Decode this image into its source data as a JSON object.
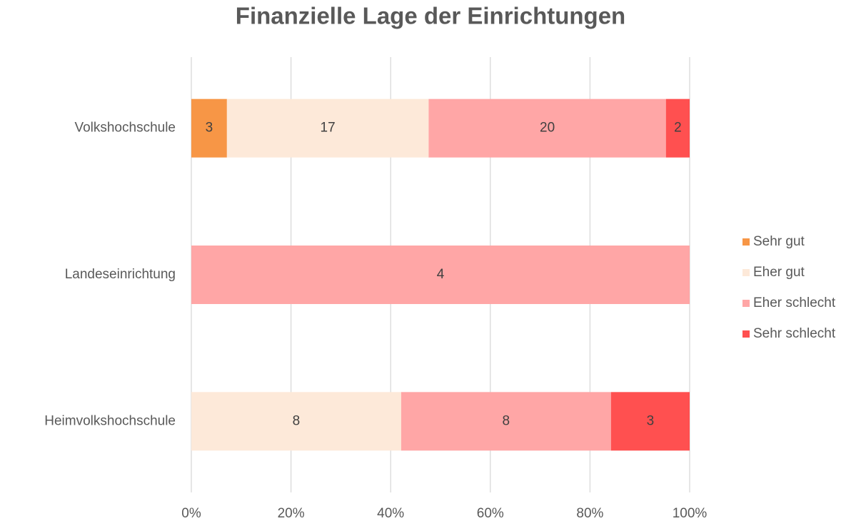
{
  "chart_data": {
    "type": "bar",
    "orientation": "horizontal",
    "stacking": "percent",
    "title": "Finanzielle Lage der Einrichtungen",
    "categories": [
      "Volkshochschule",
      "Landeseinrichtung",
      "Heimvolkshochschule"
    ],
    "series": [
      {
        "name": "Sehr gut",
        "color": "#f79646",
        "values": [
          3,
          0,
          0
        ]
      },
      {
        "name": "Eher gut",
        "color": "#fde9d9",
        "values": [
          17,
          0,
          8
        ]
      },
      {
        "name": "Eher schlecht",
        "color": "#ffa6a6",
        "values": [
          20,
          4,
          8
        ]
      },
      {
        "name": "Sehr schlecht",
        "color": "#ff5050",
        "values": [
          2,
          0,
          3
        ]
      }
    ],
    "xlim": [
      0,
      100
    ],
    "xticks": [
      {
        "value": 0,
        "label": "0%"
      },
      {
        "value": 20,
        "label": "20%"
      },
      {
        "value": 40,
        "label": "40%"
      },
      {
        "value": 60,
        "label": "60%"
      },
      {
        "value": 80,
        "label": "80%"
      },
      {
        "value": 100,
        "label": "100%"
      }
    ],
    "grid": true,
    "legend": "right"
  }
}
